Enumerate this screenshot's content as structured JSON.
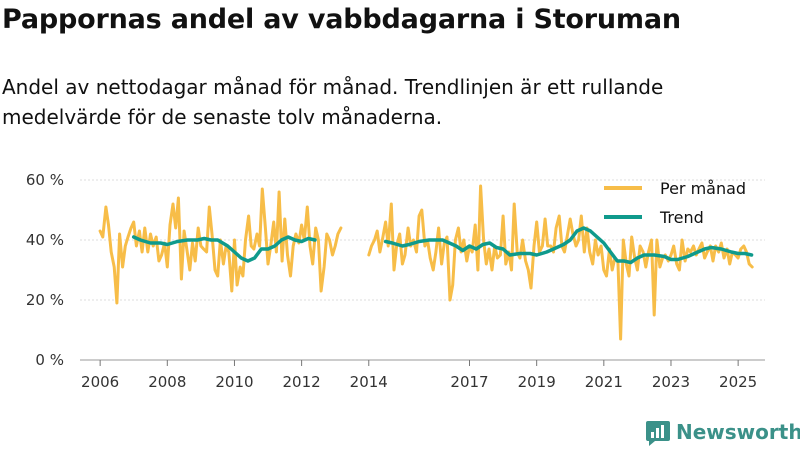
{
  "title": "Pappornas andel av vabbdagarna i Storuman",
  "subtitle": "Andel av nettodagar månad för månad. Trendlinjen är ett rullande medelvärde för de senaste tolv månaderna.",
  "brand": "Newsworthy",
  "colors": {
    "monthly": "#f7bd48",
    "trend": "#0f9a8c",
    "grid": "#dcdcdc",
    "brand": "#3b9189"
  },
  "chart_data": {
    "type": "line",
    "title": "Pappornas andel av vabbdagarna i Storuman",
    "xlabel": "",
    "ylabel": "",
    "xlim": [
      2005.4,
      2025.8
    ],
    "ylim": [
      0,
      60
    ],
    "y_ticks": [
      0,
      20,
      40,
      60
    ],
    "y_tick_labels": [
      "0 %",
      "20 %",
      "40 %",
      "60 %"
    ],
    "x_ticks": [
      2006,
      2008,
      2010,
      2012,
      2014,
      2017,
      2019,
      2021,
      2023,
      2025
    ],
    "x_tick_labels": [
      "2006",
      "2008",
      "2010",
      "2012",
      "2014",
      "2017",
      "2019",
      "2021",
      "2023",
      "2025"
    ],
    "legend": {
      "position": "top-right",
      "entries": [
        "Per månad",
        "Trend"
      ]
    },
    "series": [
      {
        "name": "Per månad",
        "points": [
          [
            2006.0,
            43
          ],
          [
            2006.08,
            41
          ],
          [
            2006.17,
            51
          ],
          [
            2006.25,
            45
          ],
          [
            2006.33,
            36
          ],
          [
            2006.42,
            31
          ],
          [
            2006.5,
            19
          ],
          [
            2006.58,
            42
          ],
          [
            2006.67,
            31
          ],
          [
            2006.75,
            38
          ],
          [
            2006.83,
            41
          ],
          [
            2006.92,
            44
          ],
          [
            2007.0,
            46
          ],
          [
            2007.08,
            38
          ],
          [
            2007.17,
            43
          ],
          [
            2007.25,
            36
          ],
          [
            2007.33,
            44
          ],
          [
            2007.42,
            36
          ],
          [
            2007.5,
            42
          ],
          [
            2007.58,
            38
          ],
          [
            2007.67,
            41
          ],
          [
            2007.75,
            33
          ],
          [
            2007.83,
            35
          ],
          [
            2007.92,
            39
          ],
          [
            2008.0,
            31
          ],
          [
            2008.08,
            45
          ],
          [
            2008.17,
            52
          ],
          [
            2008.25,
            44
          ],
          [
            2008.33,
            54
          ],
          [
            2008.42,
            27
          ],
          [
            2008.5,
            43
          ],
          [
            2008.58,
            37
          ],
          [
            2008.67,
            30
          ],
          [
            2008.75,
            39
          ],
          [
            2008.83,
            33
          ],
          [
            2008.92,
            44
          ],
          [
            2009.0,
            38
          ],
          [
            2009.08,
            37
          ],
          [
            2009.17,
            36
          ],
          [
            2009.25,
            51
          ],
          [
            2009.33,
            42
          ],
          [
            2009.42,
            30
          ],
          [
            2009.5,
            28
          ],
          [
            2009.58,
            40
          ],
          [
            2009.67,
            32
          ],
          [
            2009.75,
            38
          ],
          [
            2009.83,
            36
          ],
          [
            2009.92,
            23
          ],
          [
            2010.0,
            40
          ],
          [
            2010.08,
            25
          ],
          [
            2010.17,
            31
          ],
          [
            2010.25,
            28
          ],
          [
            2010.33,
            40
          ],
          [
            2010.42,
            48
          ],
          [
            2010.5,
            38
          ],
          [
            2010.58,
            37
          ],
          [
            2010.67,
            42
          ],
          [
            2010.75,
            38
          ],
          [
            2010.83,
            57
          ],
          [
            2010.92,
            44
          ],
          [
            2011.0,
            32
          ],
          [
            2011.08,
            38
          ],
          [
            2011.17,
            46
          ],
          [
            2011.25,
            36
          ],
          [
            2011.33,
            56
          ],
          [
            2011.42,
            33
          ],
          [
            2011.5,
            47
          ],
          [
            2011.58,
            35
          ],
          [
            2011.67,
            28
          ],
          [
            2011.75,
            38
          ],
          [
            2011.83,
            42
          ],
          [
            2011.92,
            39
          ],
          [
            2012.0,
            45
          ],
          [
            2012.08,
            40
          ],
          [
            2012.17,
            51
          ],
          [
            2012.25,
            38
          ],
          [
            2012.33,
            32
          ],
          [
            2012.42,
            44
          ],
          [
            2012.5,
            40
          ],
          [
            2012.58,
            23
          ],
          [
            2012.67,
            31
          ],
          [
            2012.75,
            42
          ],
          [
            2012.83,
            40
          ],
          [
            2012.92,
            35
          ],
          [
            2013.0,
            38
          ],
          [
            2013.08,
            42
          ],
          [
            2013.17,
            44
          ],
          [
            2014.0,
            35
          ],
          [
            2014.08,
            38
          ],
          [
            2014.17,
            40
          ],
          [
            2014.25,
            43
          ],
          [
            2014.33,
            36
          ],
          [
            2014.42,
            41
          ],
          [
            2014.5,
            46
          ],
          [
            2014.58,
            38
          ],
          [
            2014.67,
            52
          ],
          [
            2014.75,
            30
          ],
          [
            2014.83,
            38
          ],
          [
            2014.92,
            42
          ],
          [
            2015.0,
            32
          ],
          [
            2015.08,
            35
          ],
          [
            2015.17,
            44
          ],
          [
            2015.25,
            38
          ],
          [
            2015.33,
            40
          ],
          [
            2015.42,
            36
          ],
          [
            2015.5,
            48
          ],
          [
            2015.58,
            50
          ],
          [
            2015.67,
            38
          ],
          [
            2015.75,
            40
          ],
          [
            2015.83,
            34
          ],
          [
            2015.92,
            30
          ],
          [
            2016.0,
            36
          ],
          [
            2016.08,
            44
          ],
          [
            2016.17,
            32
          ],
          [
            2016.25,
            39
          ],
          [
            2016.33,
            41
          ],
          [
            2016.42,
            20
          ],
          [
            2016.5,
            25
          ],
          [
            2016.58,
            40
          ],
          [
            2016.67,
            44
          ],
          [
            2016.75,
            36
          ],
          [
            2016.83,
            40
          ],
          [
            2016.92,
            33
          ],
          [
            2017.0,
            38
          ],
          [
            2017.08,
            36
          ],
          [
            2017.17,
            45
          ],
          [
            2017.25,
            30
          ],
          [
            2017.33,
            58
          ],
          [
            2017.42,
            40
          ],
          [
            2017.5,
            32
          ],
          [
            2017.58,
            37
          ],
          [
            2017.67,
            30
          ],
          [
            2017.75,
            38
          ],
          [
            2017.83,
            34
          ],
          [
            2017.92,
            35
          ],
          [
            2018.0,
            48
          ],
          [
            2018.08,
            32
          ],
          [
            2018.17,
            36
          ],
          [
            2018.25,
            30
          ],
          [
            2018.33,
            52
          ],
          [
            2018.42,
            36
          ],
          [
            2018.5,
            34
          ],
          [
            2018.58,
            40
          ],
          [
            2018.67,
            33
          ],
          [
            2018.75,
            30
          ],
          [
            2018.83,
            24
          ],
          [
            2018.92,
            38
          ],
          [
            2019.0,
            46
          ],
          [
            2019.08,
            36
          ],
          [
            2019.17,
            38
          ],
          [
            2019.25,
            47
          ],
          [
            2019.33,
            38
          ],
          [
            2019.42,
            38
          ],
          [
            2019.5,
            36
          ],
          [
            2019.58,
            44
          ],
          [
            2019.67,
            48
          ],
          [
            2019.75,
            38
          ],
          [
            2019.83,
            36
          ],
          [
            2019.92,
            42
          ],
          [
            2020.0,
            47
          ],
          [
            2020.08,
            42
          ],
          [
            2020.17,
            38
          ],
          [
            2020.25,
            40
          ],
          [
            2020.33,
            48
          ],
          [
            2020.42,
            36
          ],
          [
            2020.5,
            44
          ],
          [
            2020.58,
            36
          ],
          [
            2020.67,
            32
          ],
          [
            2020.75,
            40
          ],
          [
            2020.83,
            35
          ],
          [
            2020.92,
            38
          ],
          [
            2021.0,
            30
          ],
          [
            2021.08,
            28
          ],
          [
            2021.17,
            37
          ],
          [
            2021.25,
            30
          ],
          [
            2021.33,
            34
          ],
          [
            2021.42,
            33
          ],
          [
            2021.5,
            7
          ],
          [
            2021.58,
            40
          ],
          [
            2021.67,
            32
          ],
          [
            2021.75,
            28
          ],
          [
            2021.83,
            41
          ],
          [
            2021.92,
            34
          ],
          [
            2022.0,
            30
          ],
          [
            2022.08,
            38
          ],
          [
            2022.17,
            36
          ],
          [
            2022.25,
            31
          ],
          [
            2022.33,
            36
          ],
          [
            2022.42,
            40
          ],
          [
            2022.5,
            15
          ],
          [
            2022.58,
            40
          ],
          [
            2022.67,
            31
          ],
          [
            2022.75,
            34
          ],
          [
            2022.83,
            35
          ],
          [
            2022.92,
            33
          ],
          [
            2023.0,
            35
          ],
          [
            2023.08,
            38
          ],
          [
            2023.17,
            32
          ],
          [
            2023.25,
            30
          ],
          [
            2023.33,
            40
          ],
          [
            2023.42,
            33
          ],
          [
            2023.5,
            37
          ],
          [
            2023.58,
            36
          ],
          [
            2023.67,
            38
          ],
          [
            2023.75,
            35
          ],
          [
            2023.83,
            37
          ],
          [
            2023.92,
            39
          ],
          [
            2024.0,
            34
          ],
          [
            2024.08,
            36
          ],
          [
            2024.17,
            38
          ],
          [
            2024.25,
            33
          ],
          [
            2024.33,
            38
          ],
          [
            2024.42,
            36
          ],
          [
            2024.5,
            39
          ],
          [
            2024.58,
            34
          ],
          [
            2024.67,
            37
          ],
          [
            2024.75,
            32
          ],
          [
            2024.83,
            36
          ],
          [
            2024.92,
            35
          ],
          [
            2025.0,
            34
          ],
          [
            2025.08,
            37
          ],
          [
            2025.17,
            38
          ],
          [
            2025.25,
            36
          ],
          [
            2025.33,
            32
          ],
          [
            2025.42,
            31
          ]
        ]
      },
      {
        "name": "Trend",
        "points": [
          [
            2007.0,
            41
          ],
          [
            2007.2,
            40
          ],
          [
            2007.5,
            39
          ],
          [
            2007.8,
            39
          ],
          [
            2008.0,
            38.5
          ],
          [
            2008.3,
            39.5
          ],
          [
            2008.6,
            40
          ],
          [
            2008.9,
            40
          ],
          [
            2009.1,
            40.5
          ],
          [
            2009.3,
            40
          ],
          [
            2009.5,
            40
          ],
          [
            2009.8,
            38
          ],
          [
            2010.0,
            36
          ],
          [
            2010.2,
            34
          ],
          [
            2010.4,
            33
          ],
          [
            2010.6,
            34
          ],
          [
            2010.8,
            37
          ],
          [
            2011.0,
            37
          ],
          [
            2011.2,
            38
          ],
          [
            2011.4,
            40
          ],
          [
            2011.6,
            41
          ],
          [
            2011.8,
            40
          ],
          [
            2012.0,
            39.5
          ],
          [
            2012.2,
            40.5
          ],
          [
            2012.4,
            40
          ],
          [
            2014.5,
            39.5
          ],
          [
            2014.7,
            39
          ],
          [
            2015.0,
            38
          ],
          [
            2015.2,
            38.5
          ],
          [
            2015.5,
            39.5
          ],
          [
            2015.8,
            40
          ],
          [
            2016.0,
            40
          ],
          [
            2016.2,
            40
          ],
          [
            2016.4,
            39
          ],
          [
            2016.6,
            38
          ],
          [
            2016.8,
            36.5
          ],
          [
            2017.0,
            38
          ],
          [
            2017.2,
            37
          ],
          [
            2017.4,
            38.5
          ],
          [
            2017.6,
            39
          ],
          [
            2017.8,
            37.5
          ],
          [
            2018.0,
            37
          ],
          [
            2018.2,
            35
          ],
          [
            2018.5,
            35.5
          ],
          [
            2018.8,
            35.5
          ],
          [
            2019.0,
            35
          ],
          [
            2019.3,
            36
          ],
          [
            2019.5,
            37
          ],
          [
            2019.8,
            38.5
          ],
          [
            2020.0,
            40
          ],
          [
            2020.2,
            43
          ],
          [
            2020.4,
            44
          ],
          [
            2020.6,
            43
          ],
          [
            2020.8,
            41
          ],
          [
            2021.0,
            39
          ],
          [
            2021.2,
            36
          ],
          [
            2021.4,
            33
          ],
          [
            2021.6,
            33
          ],
          [
            2021.8,
            32.5
          ],
          [
            2022.0,
            34
          ],
          [
            2022.2,
            35
          ],
          [
            2022.5,
            35
          ],
          [
            2022.8,
            34.5
          ],
          [
            2023.0,
            33.5
          ],
          [
            2023.2,
            33.5
          ],
          [
            2023.5,
            34.5
          ],
          [
            2023.8,
            36
          ],
          [
            2024.0,
            37
          ],
          [
            2024.2,
            37.5
          ],
          [
            2024.5,
            37
          ],
          [
            2024.8,
            36
          ],
          [
            2025.0,
            35.5
          ],
          [
            2025.2,
            35.5
          ],
          [
            2025.4,
            35
          ]
        ]
      }
    ]
  }
}
